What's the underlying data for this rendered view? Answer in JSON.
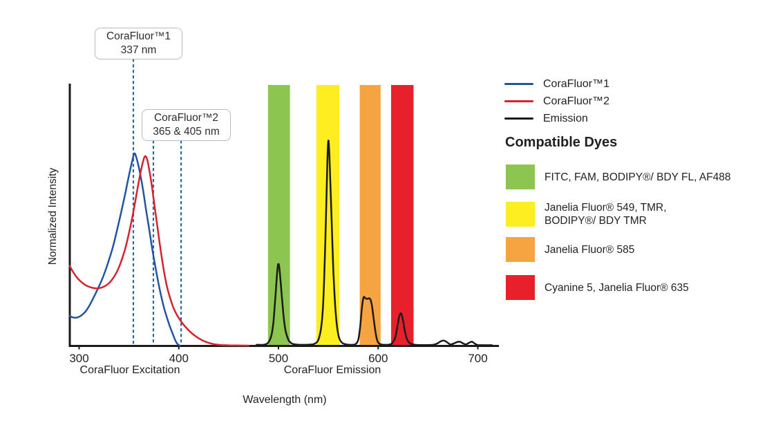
{
  "chart_data": {
    "type": "line",
    "title": "",
    "xlabel": "Wavelength (nm)",
    "ylabel": "Normalized Intensity",
    "x_ticks": [
      300,
      400,
      500,
      600,
      700
    ],
    "xlim": [
      290,
      720
    ],
    "ylim": [
      0,
      1.36
    ],
    "grid": "off",
    "section_labels": [
      "CoraFluor Excitation",
      "CoraFluor Emission"
    ],
    "bands": [
      {
        "name": "band-green",
        "color": "#8CC550",
        "from_nm": 489.5,
        "to_nm": 511.5
      },
      {
        "name": "band-yellow",
        "color": "#FCEE21",
        "from_nm": 538.0,
        "to_nm": 561.0
      },
      {
        "name": "band-orange",
        "color": "#F5A441",
        "from_nm": 581.5,
        "to_nm": 602.5
      },
      {
        "name": "band-red",
        "color": "#E8202B",
        "from_nm": 613.0,
        "to_nm": 635.5
      }
    ],
    "series": [
      {
        "name": "CoraFluor™1",
        "slug": "corafluor1-excitation-curve",
        "color": "#2255A0",
        "points": [
          [
            290.5,
            0.155
          ],
          [
            293,
            0.148
          ],
          [
            296,
            0.145
          ],
          [
            299,
            0.148
          ],
          [
            302,
            0.156
          ],
          [
            306,
            0.175
          ],
          [
            310,
            0.205
          ],
          [
            314,
            0.245
          ],
          [
            318,
            0.287
          ],
          [
            322,
            0.332
          ],
          [
            326,
            0.385
          ],
          [
            330,
            0.447
          ],
          [
            334,
            0.515
          ],
          [
            338,
            0.6
          ],
          [
            342,
            0.69
          ],
          [
            346,
            0.785
          ],
          [
            350,
            0.885
          ],
          [
            353,
            0.955
          ],
          [
            355.5,
            1.0
          ],
          [
            358,
            0.968
          ],
          [
            361,
            0.9
          ],
          [
            364,
            0.815
          ],
          [
            367,
            0.712
          ],
          [
            370,
            0.615
          ],
          [
            373,
            0.515
          ],
          [
            376,
            0.425
          ],
          [
            379,
            0.34
          ],
          [
            382,
            0.265
          ],
          [
            385,
            0.2
          ],
          [
            388,
            0.148
          ],
          [
            391,
            0.1
          ],
          [
            394,
            0.06
          ],
          [
            396,
            0.033
          ],
          [
            398,
            0.013
          ],
          [
            400,
            0.003
          ],
          [
            401,
            0
          ]
        ]
      },
      {
        "name": "CoraFluor™2",
        "slug": "corafluor2-excitation-curve",
        "color": "#D4222E",
        "points": [
          [
            290.5,
            0.415
          ],
          [
            294,
            0.383
          ],
          [
            298,
            0.353
          ],
          [
            302,
            0.332
          ],
          [
            306,
            0.316
          ],
          [
            310,
            0.306
          ],
          [
            314,
            0.3
          ],
          [
            318,
            0.298
          ],
          [
            322,
            0.301
          ],
          [
            326,
            0.31
          ],
          [
            330,
            0.325
          ],
          [
            334,
            0.35
          ],
          [
            338,
            0.385
          ],
          [
            342,
            0.435
          ],
          [
            346,
            0.5
          ],
          [
            350,
            0.585
          ],
          [
            354,
            0.685
          ],
          [
            358,
            0.8
          ],
          [
            361,
            0.885
          ],
          [
            364,
            0.955
          ],
          [
            366,
            0.985
          ],
          [
            368,
            0.973
          ],
          [
            370,
            0.925
          ],
          [
            373,
            0.83
          ],
          [
            376,
            0.715
          ],
          [
            379,
            0.6
          ],
          [
            382,
            0.49
          ],
          [
            385,
            0.39
          ],
          [
            388,
            0.31
          ],
          [
            391,
            0.252
          ],
          [
            394,
            0.205
          ],
          [
            397,
            0.17
          ],
          [
            400,
            0.143
          ],
          [
            404,
            0.114
          ],
          [
            408,
            0.09
          ],
          [
            412,
            0.069
          ],
          [
            416,
            0.052
          ],
          [
            420,
            0.038
          ],
          [
            425,
            0.024
          ],
          [
            430,
            0.014
          ],
          [
            436,
            0.007
          ],
          [
            443,
            0.003
          ],
          [
            452,
            0.001
          ],
          [
            462,
            0.0005
          ],
          [
            470,
            0
          ]
        ]
      },
      {
        "name": "Emission",
        "slug": "emission-curve",
        "color": "#1A1A1A",
        "points": [
          [
            478,
            0.004
          ],
          [
            486,
            0.005
          ],
          [
            490,
            0.018
          ],
          [
            493,
            0.055
          ],
          [
            495,
            0.125
          ],
          [
            497,
            0.26
          ],
          [
            499,
            0.4
          ],
          [
            500,
            0.425
          ],
          [
            501,
            0.4
          ],
          [
            503,
            0.28
          ],
          [
            505,
            0.16
          ],
          [
            507,
            0.08
          ],
          [
            510,
            0.03
          ],
          [
            513,
            0.012
          ],
          [
            517,
            0.006
          ],
          [
            524,
            0.004
          ],
          [
            531,
            0.005
          ],
          [
            536,
            0.009
          ],
          [
            540,
            0.03
          ],
          [
            543,
            0.1
          ],
          [
            545,
            0.235
          ],
          [
            547,
            0.54
          ],
          [
            549,
            0.95
          ],
          [
            550,
            1.065
          ],
          [
            551,
            1.0
          ],
          [
            553,
            0.7
          ],
          [
            555,
            0.4
          ],
          [
            557,
            0.2
          ],
          [
            559,
            0.09
          ],
          [
            561,
            0.038
          ],
          [
            564,
            0.014
          ],
          [
            568,
            0.006
          ],
          [
            573,
            0.004
          ],
          [
            577,
            0.007
          ],
          [
            580,
            0.03
          ],
          [
            582,
            0.1
          ],
          [
            584,
            0.21
          ],
          [
            585.5,
            0.252
          ],
          [
            587,
            0.247
          ],
          [
            589,
            0.243
          ],
          [
            591,
            0.246
          ],
          [
            592.5,
            0.237
          ],
          [
            594,
            0.2
          ],
          [
            596,
            0.12
          ],
          [
            598,
            0.05
          ],
          [
            600,
            0.016
          ],
          [
            603,
            0.006
          ],
          [
            607,
            0.004
          ],
          [
            611,
            0.005
          ],
          [
            614,
            0.012
          ],
          [
            617,
            0.04
          ],
          [
            619,
            0.09
          ],
          [
            621,
            0.148
          ],
          [
            623,
            0.168
          ],
          [
            625,
            0.13
          ],
          [
            627,
            0.07
          ],
          [
            629,
            0.032
          ],
          [
            632,
            0.012
          ],
          [
            636,
            0.005
          ],
          [
            641,
            0.003
          ],
          [
            650,
            0.003
          ],
          [
            656,
            0.005
          ],
          [
            660,
            0.013
          ],
          [
            663,
            0.023
          ],
          [
            666,
            0.026
          ],
          [
            669,
            0.018
          ],
          [
            672,
            0.007
          ],
          [
            675,
            0.009
          ],
          [
            679,
            0.018
          ],
          [
            682,
            0.02
          ],
          [
            685,
            0.012
          ],
          [
            688,
            0.006
          ],
          [
            691,
            0.014
          ],
          [
            694,
            0.02
          ],
          [
            697,
            0.01
          ],
          [
            700,
            0.003
          ],
          [
            706,
            0.002
          ],
          [
            714,
            0.002
          ]
        ]
      }
    ],
    "annotations": [
      {
        "title": "CoraFluor™1",
        "value": "337 nm",
        "dash_lines_nm": [
          354.4
        ]
      },
      {
        "title": "CoraFluor™2",
        "value": "365 & 405 nm",
        "dash_lines_nm": [
          374.5,
          402.3
        ]
      }
    ],
    "dash_color": "#2B67AE"
  },
  "legend": {
    "items": [
      {
        "label": "CoraFluor™1",
        "color": "#2255A0"
      },
      {
        "label": "CoraFluor™2",
        "color": "#D4222E"
      },
      {
        "label": "Emission",
        "color": "#1A1A1A"
      }
    ]
  },
  "dyes": {
    "heading": "Compatible Dyes",
    "items": [
      {
        "color": "#8CC550",
        "label": "FITC, FAM, BODIPY®/ BDY FL, AF488"
      },
      {
        "color": "#FCEE21",
        "label": "Janelia Fluor® 549, TMR,\nBODIPY®/ BDY TMR"
      },
      {
        "color": "#F5A441",
        "label": "Janelia Fluor® 585"
      },
      {
        "color": "#E8202B",
        "label": "Cyanine 5, Janelia Fluor® 635"
      }
    ]
  }
}
